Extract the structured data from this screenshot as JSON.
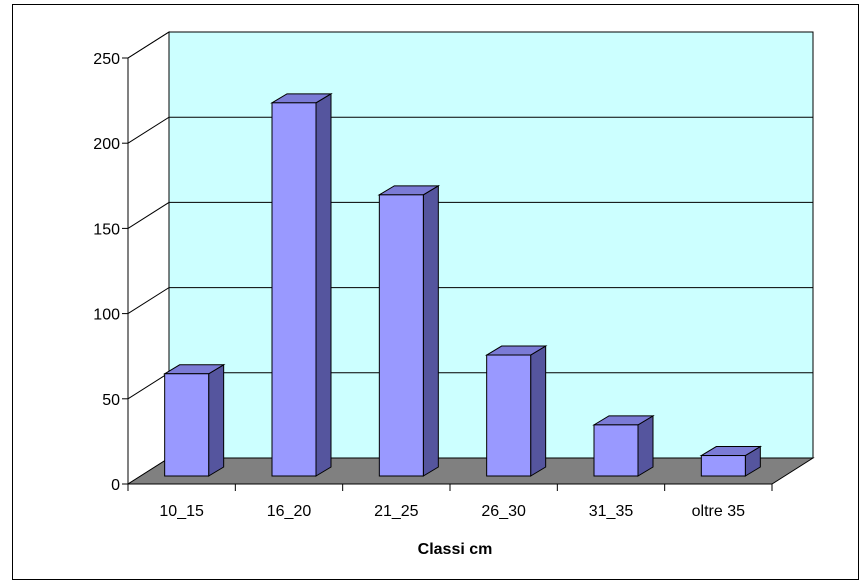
{
  "chart_data": {
    "type": "bar",
    "categories": [
      "10_15",
      "16_20",
      "21_25",
      "26_30",
      "31_35",
      "oltre 35"
    ],
    "values": [
      60,
      219,
      165,
      71,
      30,
      12
    ],
    "title": "",
    "xlabel": "Classi cm",
    "ylabel": "",
    "ylim": [
      0,
      250
    ],
    "yticks": [
      0,
      50,
      100,
      150,
      200,
      250
    ],
    "grid": true,
    "legend": "none",
    "colors": {
      "bar_front": "#9999ff",
      "bar_top": "#7b7bd6",
      "bar_side": "#55559e",
      "back_wall": "#ccffff",
      "floor": "#808080",
      "gridline": "#000000"
    }
  }
}
